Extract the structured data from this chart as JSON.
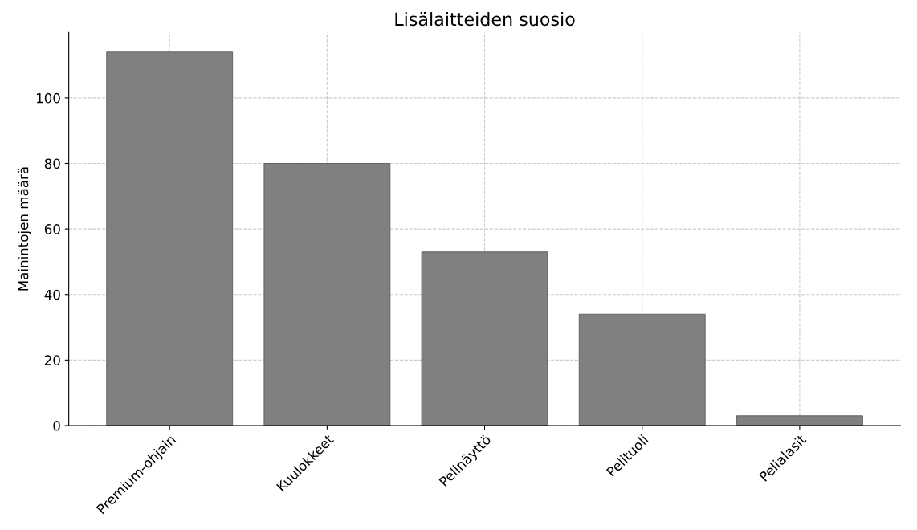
{
  "chart_data": {
    "type": "bar",
    "title": "Lisälaitteiden suosio",
    "ylabel": "Mainintojen määrä",
    "categories": [
      "Premium-ohjain",
      "Kuulokkeet",
      "Pelinäyttö",
      "Pelituoli",
      "Pelialasit"
    ],
    "values": [
      114,
      80,
      53,
      34,
      3
    ],
    "color": "#808080",
    "ylim": [
      0,
      120
    ],
    "yticks": [
      0,
      20,
      40,
      60,
      80,
      100
    ],
    "grid": true,
    "line_style": "dashed"
  }
}
